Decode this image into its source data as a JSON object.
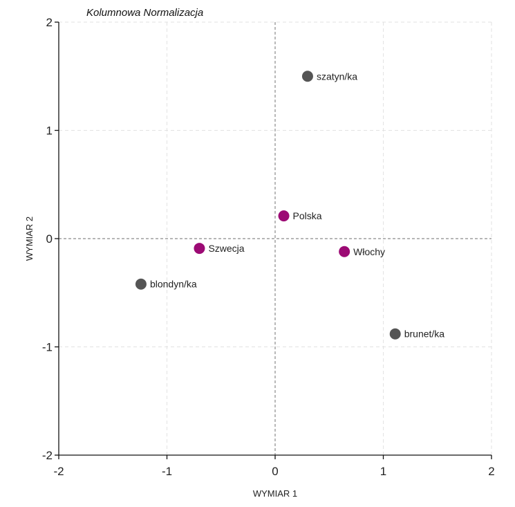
{
  "chart_data": {
    "type": "scatter",
    "title": "Kolumnowa Normalizacja",
    "xlabel": "WYMIAR 1",
    "ylabel": "WYMIAR 2",
    "xlim": [
      -2,
      2
    ],
    "ylim": [
      -2,
      2
    ],
    "xticks": [
      "-2",
      "-1",
      "0",
      "1",
      "2"
    ],
    "yticks": [
      "2",
      "1",
      "0",
      "-1",
      "-2"
    ],
    "grid": true,
    "colors": {
      "rows": "#9c0a74",
      "columns": "#555555"
    },
    "series": [
      {
        "points": [
          {
            "label": "Polska",
            "x": 0.08,
            "y": 0.21
          },
          {
            "label": "Szwecja",
            "x": -0.7,
            "y": -0.09
          },
          {
            "label": "Włochy",
            "x": 0.64,
            "y": -0.12
          }
        ]
      },
      {
        "points": [
          {
            "label": "szatyn/ka",
            "x": 0.3,
            "y": 1.5
          },
          {
            "label": "blondyn/ka",
            "x": -1.24,
            "y": -0.42
          },
          {
            "label": "brunet/ka",
            "x": 1.11,
            "y": -0.88
          }
        ]
      }
    ]
  }
}
